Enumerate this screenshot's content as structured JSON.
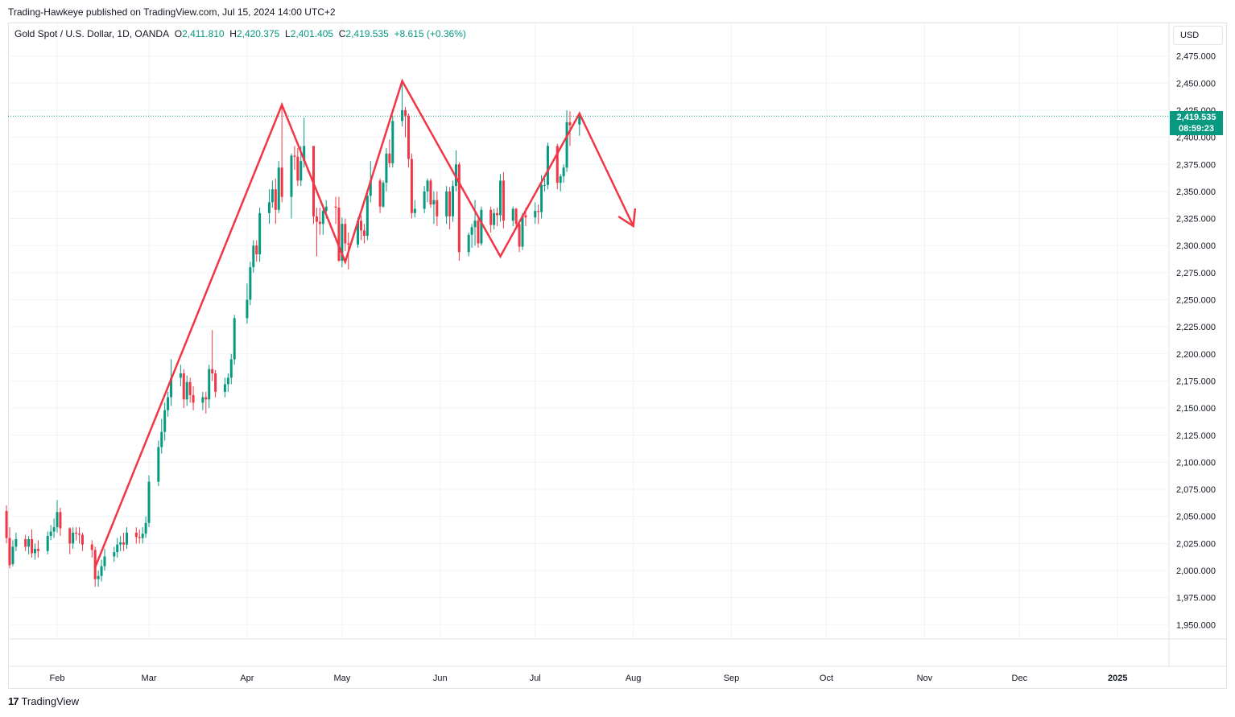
{
  "header": {
    "publisher": "Trading-Hawkeye published on TradingView.com, Jul 15, 2024 14:00 UTC+2"
  },
  "legend": {
    "symbol": "Gold Spot / U.S. Dollar, 1D, OANDA",
    "open_label": "O",
    "open": "2,411.810",
    "high_label": "H",
    "high": "2,420.375",
    "low_label": "L",
    "low": "2,401.405",
    "close_label": "C",
    "close": "2,419.535",
    "change": "+8.615 (+0.36%)"
  },
  "currency_button": "USD",
  "price_tag": {
    "price": "2,419.535",
    "countdown": "08:59:23"
  },
  "footer": {
    "logo_mark": "17",
    "logo_text": "TradingView"
  },
  "colors": {
    "up": "#089981",
    "down": "#f23645",
    "pattern": "#f23645",
    "grid": "#f0f3fa"
  },
  "chart_data": {
    "type": "candlestick",
    "symbol": "XAUUSD",
    "timeframe": "1D",
    "ylim": [
      1940,
      2490
    ],
    "y_ticks": [
      "2,475.000",
      "2,450.000",
      "2,425.000",
      "2,400.000",
      "2,375.000",
      "2,350.000",
      "2,325.000",
      "2,300.000",
      "2,275.000",
      "2,250.000",
      "2,225.000",
      "2,200.000",
      "2,175.000",
      "2,150.000",
      "2,125.000",
      "2,100.000",
      "2,075.000",
      "2,050.000",
      "2,025.000",
      "2,000.000",
      "1,975.000",
      "1,950.000"
    ],
    "x_ticks": [
      "Feb",
      "Mar",
      "Apr",
      "May",
      "Jun",
      "Jul",
      "Aug",
      "Sep",
      "Oct",
      "Nov",
      "Dec",
      "2025"
    ],
    "last_price": 2419.535,
    "pattern_line": [
      {
        "date": "2024-02-13",
        "price": 2003
      },
      {
        "date": "2024-04-12",
        "price": 2430
      },
      {
        "date": "2024-05-02",
        "price": 2285
      },
      {
        "date": "2024-05-20",
        "price": 2452
      },
      {
        "date": "2024-06-20",
        "price": 2290
      },
      {
        "date": "2024-07-15",
        "price": 2422
      },
      {
        "date": "2024-08-01",
        "price": 2318
      }
    ],
    "candles": [
      [
        "2024-01-16",
        2055,
        2030,
        2060,
        2025
      ],
      [
        "2024-01-17",
        2030,
        2005,
        2040,
        2002
      ],
      [
        "2024-01-18",
        2006,
        2022,
        2028,
        2004
      ],
      [
        "2024-01-19",
        2022,
        2029,
        2035,
        2018
      ],
      [
        "2024-01-22",
        2029,
        2022,
        2033,
        2018
      ],
      [
        "2024-01-23",
        2022,
        2029,
        2032,
        2015
      ],
      [
        "2024-01-24",
        2029,
        2016,
        2038,
        2012
      ],
      [
        "2024-01-25",
        2016,
        2020,
        2025,
        2010
      ],
      [
        "2024-01-26",
        2020,
        2018,
        2028,
        2012
      ],
      [
        "2024-01-29",
        2018,
        2032,
        2036,
        2015
      ],
      [
        "2024-01-30",
        2032,
        2036,
        2042,
        2028
      ],
      [
        "2024-01-31",
        2036,
        2040,
        2048,
        2030
      ],
      [
        "2024-02-01",
        2040,
        2054,
        2065,
        2035
      ],
      [
        "2024-02-02",
        2054,
        2039,
        2058,
        2032
      ],
      [
        "2024-02-05",
        2039,
        2025,
        2040,
        2015
      ],
      [
        "2024-02-06",
        2025,
        2035,
        2040,
        2020
      ],
      [
        "2024-02-07",
        2035,
        2034,
        2040,
        2028
      ],
      [
        "2024-02-08",
        2034,
        2033,
        2040,
        2025
      ],
      [
        "2024-02-09",
        2033,
        2024,
        2035,
        2018
      ],
      [
        "2024-02-12",
        2024,
        2019,
        2028,
        2012
      ],
      [
        "2024-02-13",
        2019,
        1992,
        2022,
        1985
      ],
      [
        "2024-02-14",
        1992,
        1995,
        2000,
        1985
      ],
      [
        "2024-02-15",
        1995,
        2004,
        2010,
        1990
      ],
      [
        "2024-02-16",
        2004,
        2013,
        2020,
        2000
      ],
      [
        "2024-02-19",
        2013,
        2017,
        2022,
        2008
      ],
      [
        "2024-02-20",
        2017,
        2024,
        2030,
        2012
      ],
      [
        "2024-02-21",
        2024,
        2026,
        2032,
        2018
      ],
      [
        "2024-02-22",
        2026,
        2024,
        2035,
        2018
      ],
      [
        "2024-02-23",
        2024,
        2035,
        2040,
        2020
      ],
      [
        "2024-02-26",
        2035,
        2031,
        2040,
        2025
      ],
      [
        "2024-02-27",
        2031,
        2030,
        2038,
        2025
      ],
      [
        "2024-02-28",
        2030,
        2034,
        2040,
        2025
      ],
      [
        "2024-02-29",
        2034,
        2044,
        2050,
        2030
      ],
      [
        "2024-03-01",
        2044,
        2082,
        2088,
        2040
      ],
      [
        "2024-03-04",
        2082,
        2114,
        2120,
        2078
      ],
      [
        "2024-03-05",
        2114,
        2128,
        2140,
        2108
      ],
      [
        "2024-03-06",
        2128,
        2148,
        2155,
        2120
      ],
      [
        "2024-03-07",
        2148,
        2160,
        2165,
        2142
      ],
      [
        "2024-03-08",
        2160,
        2178,
        2195,
        2152
      ],
      [
        "2024-03-11",
        2178,
        2182,
        2190,
        2170
      ],
      [
        "2024-03-12",
        2182,
        2158,
        2186,
        2150
      ],
      [
        "2024-03-13",
        2158,
        2174,
        2180,
        2152
      ],
      [
        "2024-03-14",
        2174,
        2162,
        2178,
        2155
      ],
      [
        "2024-03-15",
        2162,
        2155,
        2170,
        2148
      ],
      [
        "2024-03-18",
        2155,
        2160,
        2165,
        2148
      ],
      [
        "2024-03-19",
        2160,
        2158,
        2165,
        2145
      ],
      [
        "2024-03-20",
        2158,
        2186,
        2190,
        2150
      ],
      [
        "2024-03-21",
        2186,
        2182,
        2222,
        2175
      ],
      [
        "2024-03-22",
        2182,
        2165,
        2185,
        2160
      ],
      [
        "2024-03-25",
        2165,
        2172,
        2178,
        2160
      ],
      [
        "2024-03-26",
        2172,
        2178,
        2182,
        2165
      ],
      [
        "2024-03-27",
        2178,
        2195,
        2200,
        2172
      ],
      [
        "2024-03-28",
        2195,
        2233,
        2236,
        2190
      ],
      [
        "2024-04-01",
        2233,
        2250,
        2265,
        2228
      ],
      [
        "2024-04-02",
        2250,
        2280,
        2285,
        2245
      ],
      [
        "2024-04-03",
        2280,
        2300,
        2305,
        2275
      ],
      [
        "2024-04-04",
        2300,
        2292,
        2305,
        2285
      ],
      [
        "2024-04-05",
        2292,
        2330,
        2335,
        2285
      ],
      [
        "2024-04-08",
        2330,
        2340,
        2352,
        2320
      ],
      [
        "2024-04-09",
        2340,
        2352,
        2360,
        2335
      ],
      [
        "2024-04-10",
        2352,
        2333,
        2362,
        2320
      ],
      [
        "2024-04-11",
        2333,
        2372,
        2378,
        2330
      ],
      [
        "2024-04-12",
        2372,
        2345,
        2432,
        2340
      ],
      [
        "2024-04-15",
        2345,
        2383,
        2385,
        2325
      ],
      [
        "2024-04-16",
        2383,
        2382,
        2392,
        2370
      ],
      [
        "2024-04-17",
        2382,
        2360,
        2390,
        2355
      ],
      [
        "2024-04-18",
        2360,
        2378,
        2392,
        2355
      ],
      [
        "2024-04-19",
        2378,
        2392,
        2418,
        2372
      ],
      [
        "2024-04-22",
        2392,
        2327,
        2392,
        2320
      ],
      [
        "2024-04-23",
        2327,
        2322,
        2335,
        2290
      ],
      [
        "2024-04-24",
        2322,
        2320,
        2335,
        2310
      ],
      [
        "2024-04-25",
        2320,
        2332,
        2338,
        2310
      ],
      [
        "2024-04-26",
        2332,
        2336,
        2342,
        2325
      ],
      [
        "2024-04-29",
        2336,
        2335,
        2345,
        2320
      ],
      [
        "2024-04-30",
        2335,
        2286,
        2345,
        2285
      ],
      [
        "2024-05-01",
        2286,
        2320,
        2326,
        2280
      ],
      [
        "2024-05-02",
        2320,
        2302,
        2325,
        2295
      ],
      [
        "2024-05-03",
        2302,
        2301,
        2312,
        2278
      ],
      [
        "2024-05-06",
        2301,
        2323,
        2326,
        2298
      ],
      [
        "2024-05-07",
        2323,
        2314,
        2328,
        2305
      ],
      [
        "2024-05-08",
        2314,
        2309,
        2320,
        2302
      ],
      [
        "2024-05-09",
        2309,
        2346,
        2352,
        2305
      ],
      [
        "2024-05-10",
        2346,
        2360,
        2378,
        2340
      ],
      [
        "2024-05-13",
        2360,
        2336,
        2362,
        2330
      ],
      [
        "2024-05-14",
        2336,
        2358,
        2360,
        2335
      ],
      [
        "2024-05-15",
        2358,
        2385,
        2390,
        2350
      ],
      [
        "2024-05-16",
        2385,
        2376,
        2398,
        2372
      ],
      [
        "2024-05-17",
        2376,
        2415,
        2420,
        2372
      ],
      [
        "2024-05-20",
        2415,
        2425,
        2450,
        2410
      ],
      [
        "2024-05-21",
        2425,
        2420,
        2428,
        2400
      ],
      [
        "2024-05-22",
        2420,
        2380,
        2422,
        2372
      ],
      [
        "2024-05-23",
        2380,
        2330,
        2385,
        2325
      ],
      [
        "2024-05-24",
        2330,
        2334,
        2342,
        2326
      ],
      [
        "2024-05-27",
        2334,
        2350,
        2355,
        2330
      ],
      [
        "2024-05-28",
        2350,
        2360,
        2362,
        2340
      ],
      [
        "2024-05-29",
        2360,
        2338,
        2362,
        2335
      ],
      [
        "2024-05-30",
        2338,
        2342,
        2350,
        2320
      ],
      [
        "2024-05-31",
        2342,
        2327,
        2350,
        2318
      ],
      [
        "2024-06-03",
        2327,
        2350,
        2355,
        2320
      ],
      [
        "2024-06-04",
        2350,
        2327,
        2354,
        2315
      ],
      [
        "2024-06-05",
        2327,
        2355,
        2360,
        2322
      ],
      [
        "2024-06-06",
        2355,
        2375,
        2388,
        2350
      ],
      [
        "2024-06-07",
        2375,
        2294,
        2377,
        2286
      ],
      [
        "2024-06-10",
        2294,
        2310,
        2312,
        2290
      ],
      [
        "2024-06-11",
        2310,
        2317,
        2320,
        2298
      ],
      [
        "2024-06-12",
        2317,
        2323,
        2342,
        2300
      ],
      [
        "2024-06-13",
        2323,
        2302,
        2325,
        2298
      ],
      [
        "2024-06-14",
        2302,
        2333,
        2336,
        2300
      ],
      [
        "2024-06-17",
        2333,
        2319,
        2336,
        2312
      ],
      [
        "2024-06-18",
        2319,
        2330,
        2334,
        2315
      ],
      [
        "2024-06-19",
        2330,
        2328,
        2335,
        2318
      ],
      [
        "2024-06-20",
        2328,
        2360,
        2366,
        2322
      ],
      [
        "2024-06-21",
        2360,
        2323,
        2368,
        2316
      ],
      [
        "2024-06-24",
        2323,
        2334,
        2336,
        2318
      ],
      [
        "2024-06-25",
        2334,
        2320,
        2335,
        2315
      ],
      [
        "2024-06-26",
        2320,
        2299,
        2322,
        2294
      ],
      [
        "2024-06-27",
        2299,
        2328,
        2330,
        2296
      ],
      [
        "2024-06-28",
        2328,
        2326,
        2335,
        2318
      ],
      [
        "2024-07-01",
        2326,
        2332,
        2340,
        2320
      ],
      [
        "2024-07-02",
        2332,
        2331,
        2338,
        2320
      ],
      [
        "2024-07-03",
        2331,
        2356,
        2365,
        2325
      ],
      [
        "2024-07-04",
        2356,
        2356,
        2362,
        2350
      ],
      [
        "2024-07-05",
        2356,
        2392,
        2395,
        2352
      ],
      [
        "2024-07-08",
        2392,
        2358,
        2394,
        2352
      ],
      [
        "2024-07-09",
        2358,
        2364,
        2366,
        2350
      ],
      [
        "2024-07-10",
        2364,
        2372,
        2375,
        2358
      ],
      [
        "2024-07-11",
        2372,
        2414,
        2425,
        2368
      ],
      [
        "2024-07-12",
        2414,
        2411,
        2424,
        2392
      ],
      [
        "2024-07-15",
        2411.81,
        2419.535,
        2420.375,
        2401.405
      ]
    ]
  }
}
